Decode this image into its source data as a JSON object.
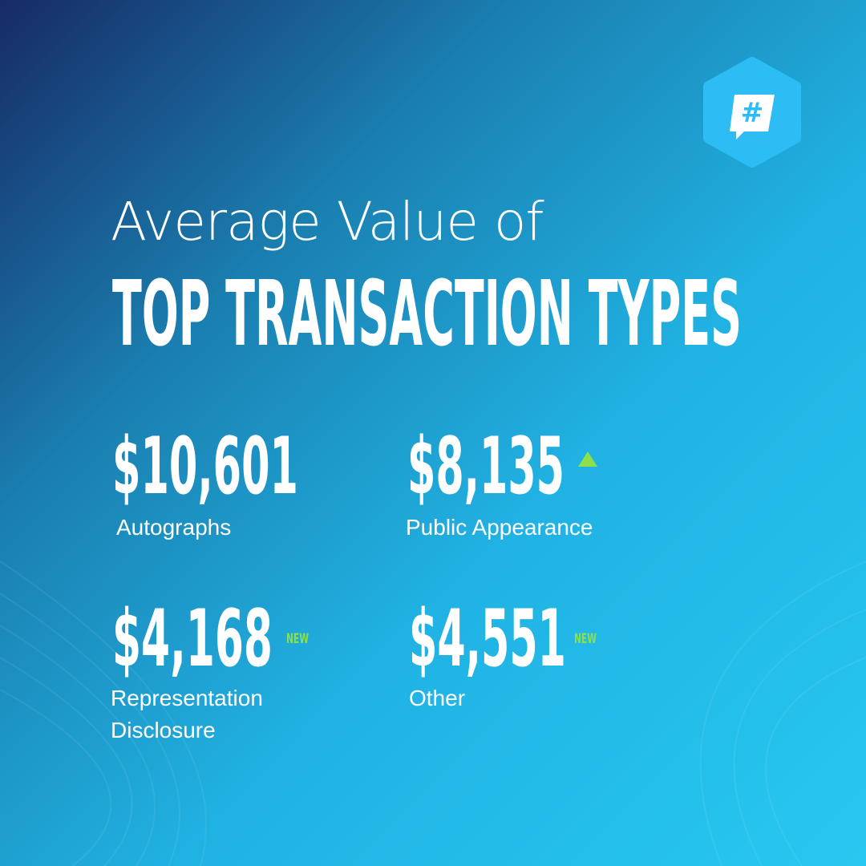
{
  "logo": {
    "symbol": "#"
  },
  "header": {
    "line1": "Average Value of",
    "line2": "TOP TRANSACTION TYPES"
  },
  "stats": [
    {
      "value": "$10,601",
      "label": "Autographs"
    },
    {
      "value": "$8,135",
      "label": "Public Appearance"
    },
    {
      "value": "$4,168",
      "label": "Representation Disclosure",
      "badge": "NEW"
    },
    {
      "value": "$4,551",
      "label": "Other",
      "badge": "NEW"
    }
  ]
}
